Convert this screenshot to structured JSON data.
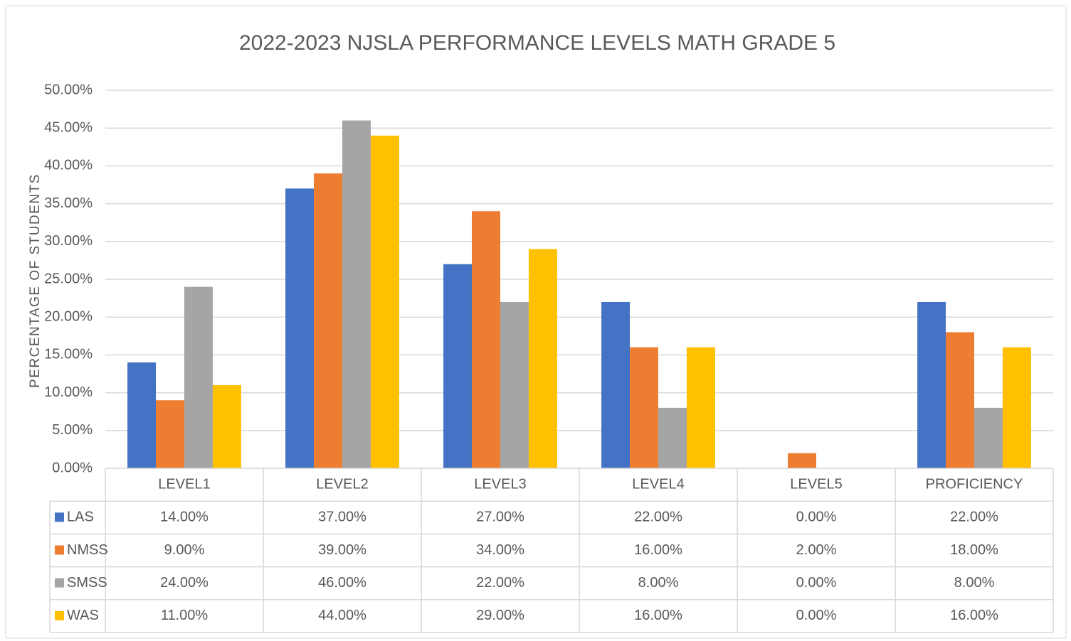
{
  "chart_data": {
    "type": "bar",
    "title": "2022-2023 NJSLA PERFORMANCE LEVELS MATH GRADE 5",
    "y_label": "PERCENTAGE OF STUDENTS",
    "categories": [
      "LEVEL1",
      "LEVEL2",
      "LEVEL3",
      "LEVEL4",
      "LEVEL5",
      "PROFICIENCY"
    ],
    "series": [
      {
        "name": "LAS",
        "color": "#4472c4",
        "values": [
          14,
          37,
          27,
          22,
          0,
          22
        ],
        "value_labels": [
          "14.00%",
          "37.00%",
          "27.00%",
          "22.00%",
          "0.00%",
          "22.00%"
        ]
      },
      {
        "name": "NMSS",
        "color": "#ed7d31",
        "values": [
          9,
          39,
          34,
          16,
          2,
          18
        ],
        "value_labels": [
          "9.00%",
          "39.00%",
          "34.00%",
          "16.00%",
          "2.00%",
          "18.00%"
        ]
      },
      {
        "name": "SMSS",
        "color": "#a5a5a5",
        "values": [
          24,
          46,
          22,
          8,
          0,
          8
        ],
        "value_labels": [
          "24.00%",
          "46.00%",
          "22.00%",
          "8.00%",
          "0.00%",
          "8.00%"
        ]
      },
      {
        "name": "WAS",
        "color": "#ffc000",
        "values": [
          11,
          44,
          29,
          16,
          0,
          16
        ],
        "value_labels": [
          "11.00%",
          "44.00%",
          "29.00%",
          "16.00%",
          "0.00%",
          "16.00%"
        ]
      }
    ],
    "ylim": [
      0,
      50
    ],
    "yticks": [
      {
        "value": 0,
        "label": "0.00%"
      },
      {
        "value": 5,
        "label": "5.00%"
      },
      {
        "value": 10,
        "label": "10.00%"
      },
      {
        "value": 15,
        "label": "15.00%"
      },
      {
        "value": 20,
        "label": "20.00%"
      },
      {
        "value": 25,
        "label": "25.00%"
      },
      {
        "value": 30,
        "label": "30.00%"
      },
      {
        "value": 35,
        "label": "35.00%"
      },
      {
        "value": 40,
        "label": "40.00%"
      },
      {
        "value": 45,
        "label": "45.00%"
      },
      {
        "value": 50,
        "label": "50.00%"
      }
    ],
    "grid": true
  }
}
